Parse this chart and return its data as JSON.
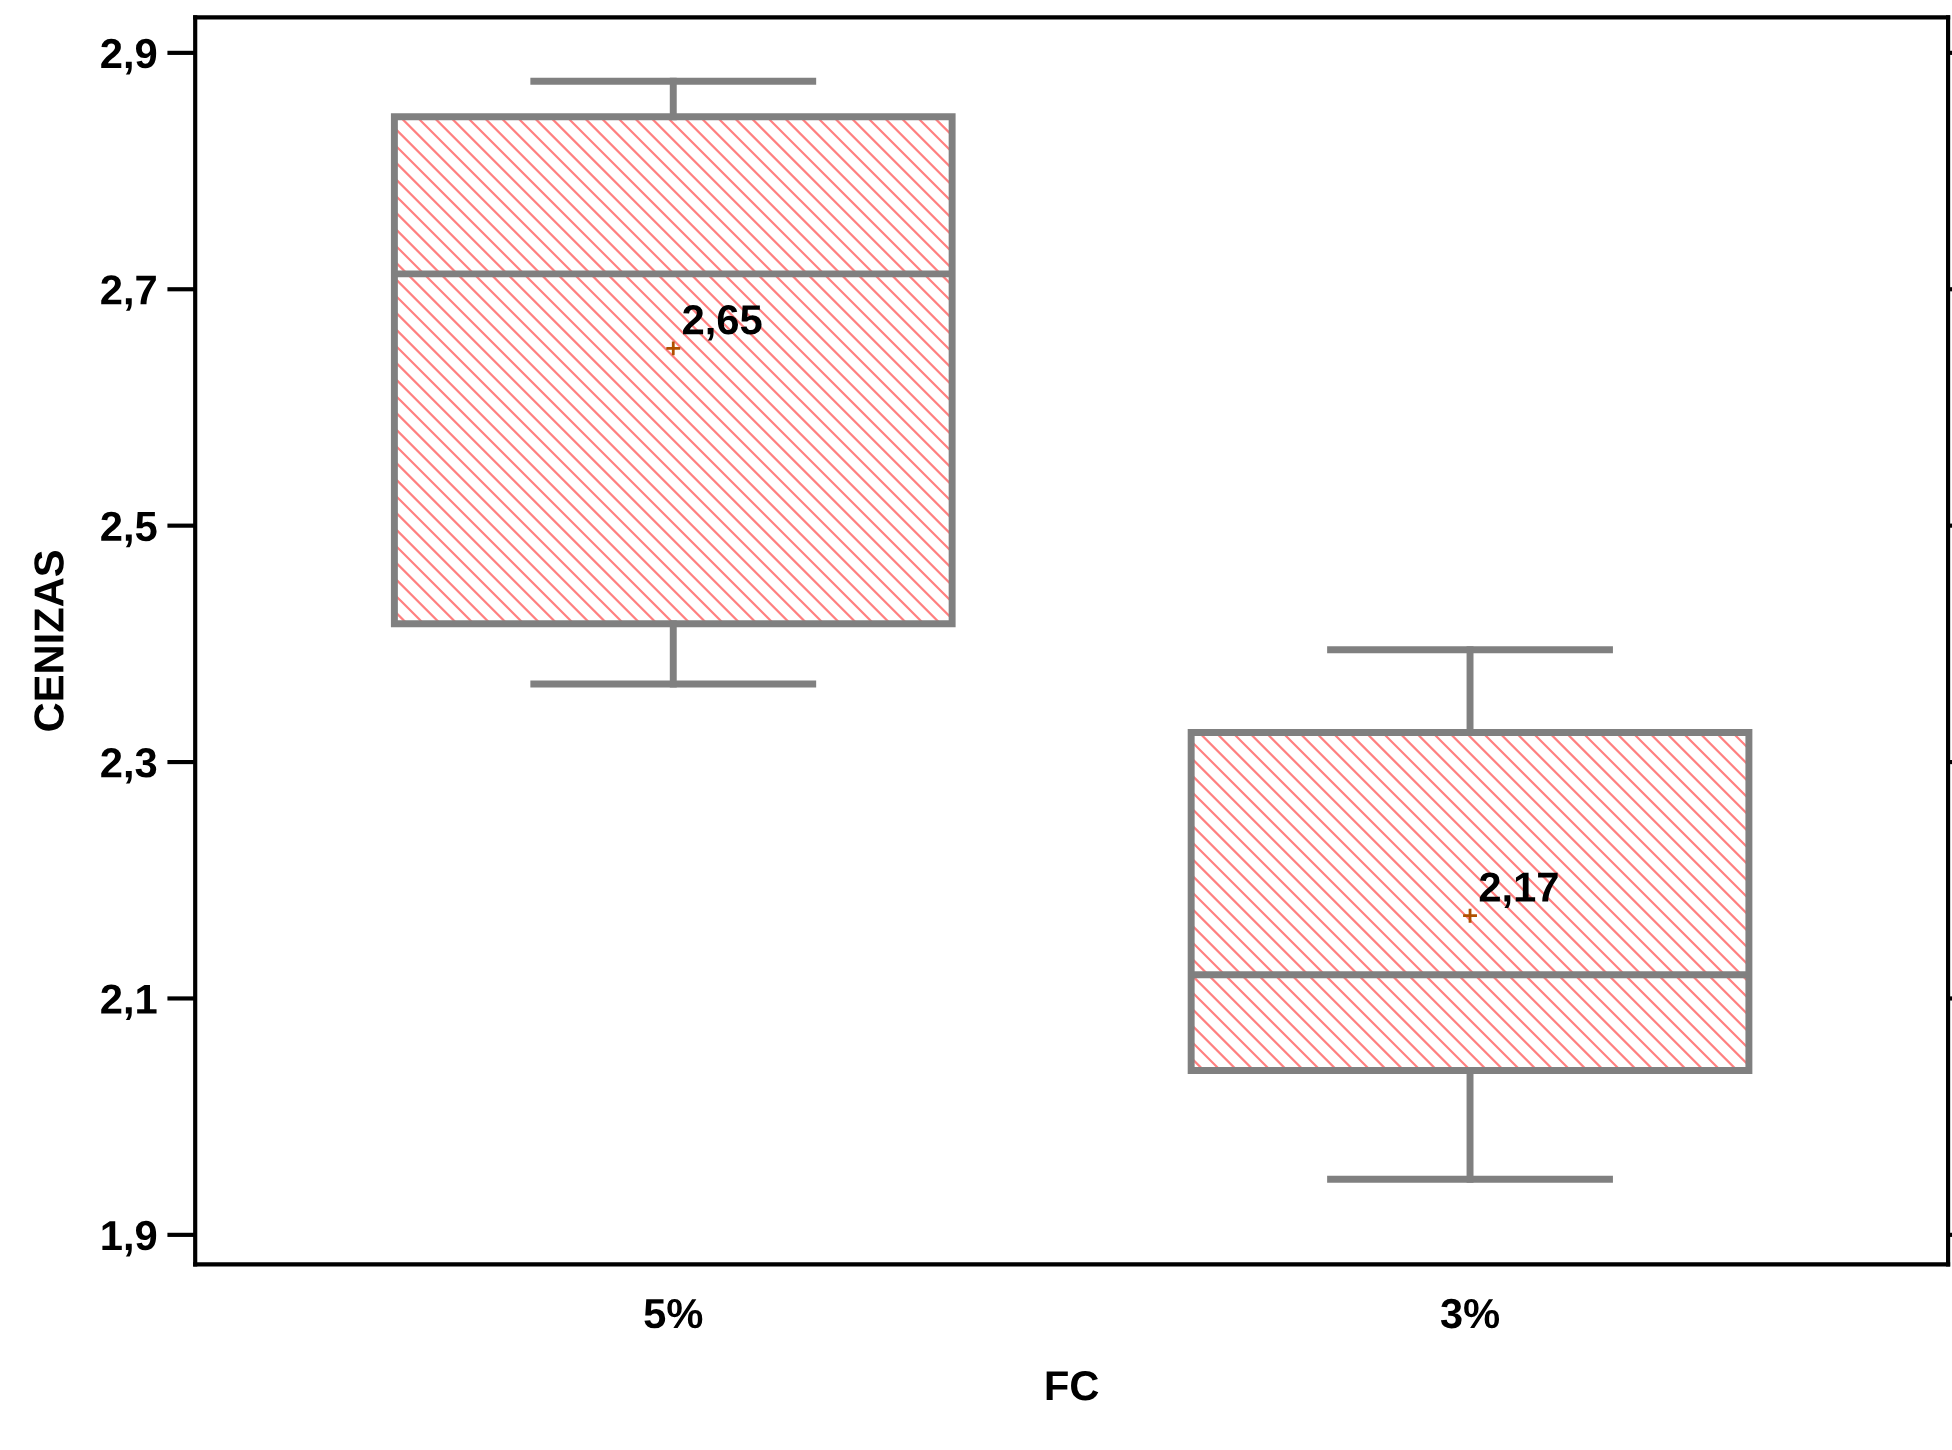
{
  "chart_data": {
    "type": "box",
    "xlabel": "FC",
    "ylabel": "CENIZAS",
    "categories": [
      "5%",
      "3%"
    ],
    "color": "#ff8080",
    "boxes": [
      {
        "low": 2.366,
        "q1": 2.417,
        "median": 2.713,
        "q3": 2.846,
        "high": 2.876,
        "mean": 2.65
      },
      {
        "low": 1.947,
        "q1": 2.039,
        "median": 2.12,
        "q3": 2.325,
        "high": 2.395,
        "mean": 2.17
      }
    ],
    "annotations": [
      "2,65",
      "2,17"
    ],
    "ylim": [
      1.875,
      2.93
    ],
    "yticks": [
      {
        "value": 1.9,
        "label": "1,9"
      },
      {
        "value": 2.1,
        "label": "2,1"
      },
      {
        "value": 2.3,
        "label": "2,3"
      },
      {
        "value": 2.5,
        "label": "2,5"
      },
      {
        "value": 2.7,
        "label": "2,7"
      },
      {
        "value": 2.9,
        "label": "2,9"
      }
    ],
    "grid": false
  }
}
